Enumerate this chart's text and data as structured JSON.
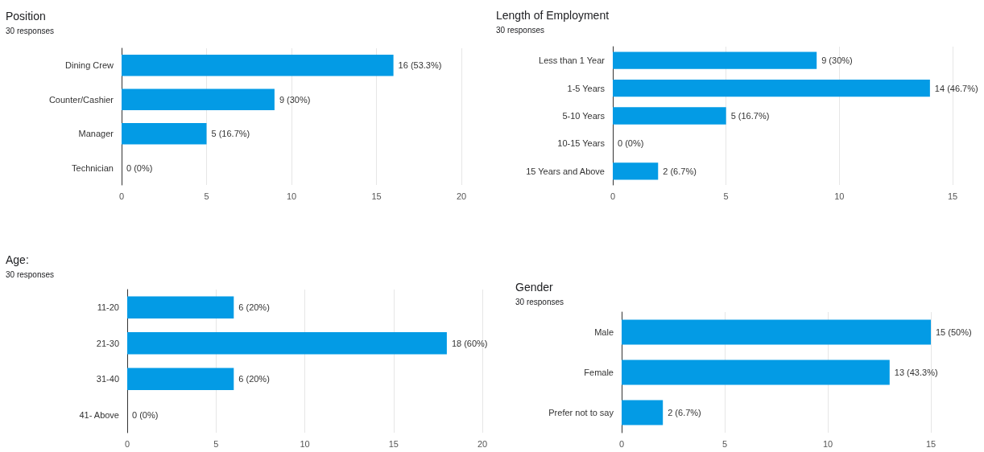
{
  "chart_data": [
    {
      "type": "bar",
      "orientation": "horizontal",
      "title": "Position",
      "subtitle": "30 responses",
      "categories": [
        "Dining Crew",
        "Counter/Cashier",
        "Manager",
        "Technician"
      ],
      "values": [
        16,
        9,
        5,
        0
      ],
      "value_labels": [
        "16 (53.3%)",
        "9 (30%)",
        "5 (16.7%)",
        "0 (0%)"
      ],
      "color": "#039be5",
      "xlim": [
        0,
        20
      ],
      "xticks": [
        0,
        5,
        10,
        15,
        20
      ],
      "grid": "x"
    },
    {
      "type": "bar",
      "orientation": "horizontal",
      "title": "Length of Employment",
      "subtitle": "30 responses",
      "categories": [
        "Less than 1 Year",
        "1-5 Years",
        "5-10 Years",
        "10-15 Years",
        "15 Years and Above"
      ],
      "values": [
        9,
        14,
        5,
        0,
        2
      ],
      "value_labels": [
        "9 (30%)",
        "14 (46.7%)",
        "5 (16.7%)",
        "0 (0%)",
        "2 (6.7%)"
      ],
      "color": "#039be5",
      "xlim": [
        0,
        15
      ],
      "xticks": [
        0,
        5,
        10,
        15
      ],
      "grid": "x"
    },
    {
      "type": "bar",
      "orientation": "horizontal",
      "title": "Age:",
      "subtitle": "30 responses",
      "categories": [
        "11-20",
        "21-30",
        "31-40",
        "41- Above"
      ],
      "values": [
        6,
        18,
        6,
        0
      ],
      "value_labels": [
        "6 (20%)",
        "18 (60%)",
        "6 (20%)",
        "0 (0%)"
      ],
      "color": "#039be5",
      "xlim": [
        0,
        20
      ],
      "xticks": [
        0,
        5,
        10,
        15,
        20
      ],
      "grid": "x"
    },
    {
      "type": "bar",
      "orientation": "horizontal",
      "title": "Gender",
      "subtitle": "30 responses",
      "categories": [
        "Male",
        "Female",
        "Prefer not to say"
      ],
      "values": [
        15,
        13,
        2
      ],
      "value_labels": [
        "15 (50%)",
        "13 (43.3%)",
        "2 (6.7%)"
      ],
      "color": "#039be5",
      "xlim": [
        0,
        15
      ],
      "xticks": [
        0,
        5,
        10,
        15
      ],
      "grid": "x"
    }
  ]
}
